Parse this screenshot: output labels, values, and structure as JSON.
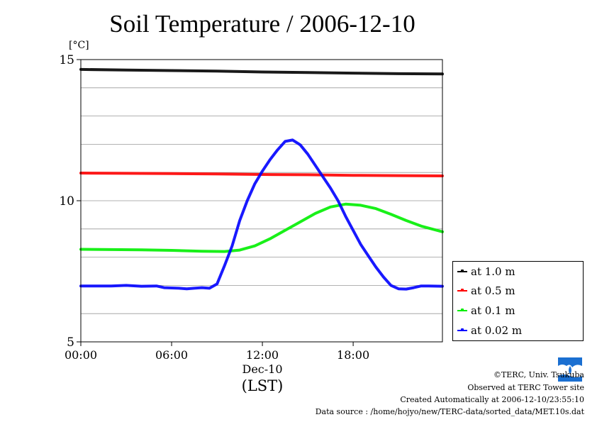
{
  "chart_data": {
    "type": "line",
    "title": "Soil Temperature / 2006-12-10",
    "ylabel": "[°C]",
    "xlabel_lines": [
      "Dec-10",
      "(LST)"
    ],
    "xlim": [
      0,
      23.9
    ],
    "ylim": [
      5,
      15
    ],
    "x_ticks": [
      {
        "x": 0,
        "label": "00:00"
      },
      {
        "x": 6,
        "label": "06:00"
      },
      {
        "x": 12,
        "label": "12:00"
      },
      {
        "x": 18,
        "label": "18:00"
      }
    ],
    "y_ticks": [
      {
        "y": 5,
        "label": "5"
      },
      {
        "y": 10,
        "label": "10"
      },
      {
        "y": 15,
        "label": "15"
      }
    ],
    "gridlines_y": [
      6,
      7,
      8,
      9,
      10,
      11,
      12,
      13,
      14,
      15
    ],
    "grid": true,
    "legend_position": "right-bottom",
    "series": [
      {
        "name": "at 1.0 m",
        "color": "#000000",
        "points": [
          [
            0,
            14.65
          ],
          [
            3,
            14.63
          ],
          [
            6,
            14.61
          ],
          [
            9,
            14.59
          ],
          [
            12,
            14.56
          ],
          [
            15,
            14.54
          ],
          [
            18,
            14.52
          ],
          [
            21,
            14.5
          ],
          [
            23.9,
            14.49
          ]
        ]
      },
      {
        "name": "at 0.5 m",
        "color": "#ff0000",
        "points": [
          [
            0,
            10.98
          ],
          [
            3,
            10.97
          ],
          [
            6,
            10.96
          ],
          [
            9,
            10.95
          ],
          [
            12,
            10.93
          ],
          [
            15,
            10.92
          ],
          [
            18,
            10.9
          ],
          [
            21,
            10.89
          ],
          [
            23.9,
            10.88
          ]
        ]
      },
      {
        "name": "at 0.1 m",
        "color": "#00ee00",
        "points": [
          [
            0,
            8.28
          ],
          [
            2,
            8.27
          ],
          [
            4,
            8.26
          ],
          [
            6,
            8.24
          ],
          [
            8,
            8.21
          ],
          [
            9.5,
            8.2
          ],
          [
            10.5,
            8.25
          ],
          [
            11.5,
            8.4
          ],
          [
            12.5,
            8.65
          ],
          [
            13.5,
            8.95
          ],
          [
            14.5,
            9.25
          ],
          [
            15.5,
            9.55
          ],
          [
            16.5,
            9.78
          ],
          [
            17.5,
            9.88
          ],
          [
            18.5,
            9.84
          ],
          [
            19.5,
            9.72
          ],
          [
            20.5,
            9.52
          ],
          [
            21.5,
            9.3
          ],
          [
            22.5,
            9.1
          ],
          [
            23.9,
            8.9
          ]
        ]
      },
      {
        "name": "at 0.02 m",
        "color": "#0000ff",
        "points": [
          [
            0,
            6.98
          ],
          [
            2,
            6.98
          ],
          [
            3,
            7.0
          ],
          [
            4,
            6.97
          ],
          [
            5,
            6.98
          ],
          [
            5.5,
            6.92
          ],
          [
            6.5,
            6.9
          ],
          [
            7,
            6.88
          ],
          [
            7.5,
            6.9
          ],
          [
            8,
            6.92
          ],
          [
            8.5,
            6.9
          ],
          [
            9,
            7.05
          ],
          [
            9.5,
            7.7
          ],
          [
            10,
            8.4
          ],
          [
            10.5,
            9.3
          ],
          [
            11,
            10.0
          ],
          [
            11.5,
            10.6
          ],
          [
            12,
            11.05
          ],
          [
            12.5,
            11.45
          ],
          [
            13,
            11.8
          ],
          [
            13.5,
            12.1
          ],
          [
            14,
            12.15
          ],
          [
            14.5,
            11.98
          ],
          [
            15,
            11.65
          ],
          [
            15.5,
            11.25
          ],
          [
            16,
            10.85
          ],
          [
            16.5,
            10.45
          ],
          [
            17,
            10.0
          ],
          [
            17.5,
            9.45
          ],
          [
            18,
            8.95
          ],
          [
            18.5,
            8.45
          ],
          [
            19,
            8.05
          ],
          [
            19.5,
            7.65
          ],
          [
            20,
            7.3
          ],
          [
            20.5,
            7.0
          ],
          [
            21,
            6.88
          ],
          [
            21.5,
            6.87
          ],
          [
            22,
            6.92
          ],
          [
            22.5,
            6.98
          ],
          [
            23,
            6.98
          ],
          [
            23.9,
            6.97
          ]
        ]
      }
    ]
  },
  "footer": {
    "credit": "©TERC, Univ. Tsukuba",
    "site": "Observed at TERC Tower site",
    "created": "Created Automatically at 2006-12-10/23:55:10",
    "source": "Data source : /home/hojyo/new/TERC-data/sorted_data/MET.10s.dat",
    "logo_text": "TERC"
  }
}
